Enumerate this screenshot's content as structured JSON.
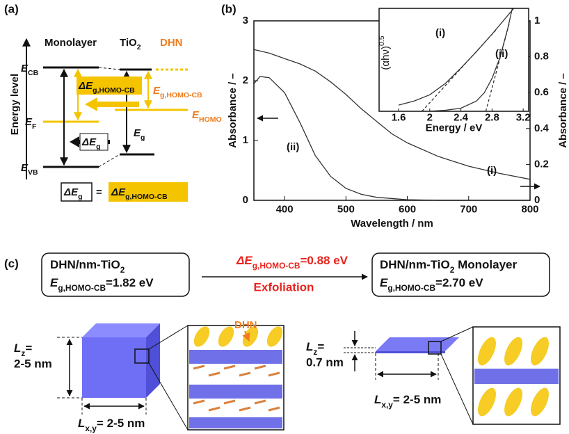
{
  "panel_a": {
    "label": "(a)",
    "columns": [
      "Monolayer",
      [
        "TiO",
        "2"
      ],
      "DHN"
    ],
    "y_axis_label": "Energy level",
    "E_CB": [
      "E",
      "CB"
    ],
    "E_F": [
      "E",
      "F"
    ],
    "E_VB": [
      "E",
      "VB"
    ],
    "E_HOMO": [
      "E",
      "HOMO"
    ],
    "E_g": [
      "E",
      "g"
    ],
    "E_g_homo_cb": [
      "E",
      "g,HOMO-CB"
    ],
    "delta_E_g_homo_cb": [
      "ΔE",
      "g,HOMO-CB"
    ],
    "delta_E_g": [
      "ΔE",
      "g"
    ],
    "equation": {
      "left": [
        "ΔE",
        "g"
      ],
      "sign": "=",
      "right": [
        "ΔE",
        "g,HOMO-CB"
      ]
    }
  },
  "chart_data": [
    {
      "type": "line",
      "panel_label": "(b)",
      "x_label": "Wavelength / nm",
      "y_label": "Absorbance / –",
      "y2_label": "Absorbance / –",
      "xlim": [
        350,
        800
      ],
      "xticks": [
        400,
        500,
        600,
        700,
        800
      ],
      "ylim": [
        0,
        3
      ],
      "yticks": [
        0,
        1,
        2,
        3
      ],
      "y2lim": [
        0,
        1
      ],
      "y2ticks": [
        0,
        0.2,
        0.4,
        0.6,
        0.8,
        1
      ],
      "series": [
        {
          "name": "(i)",
          "color": "#333333",
          "axis": "y2",
          "x": [
            350,
            375,
            400,
            425,
            450,
            475,
            500,
            525,
            550,
            575,
            600,
            650,
            700,
            750,
            800
          ],
          "values": [
            0.84,
            0.82,
            0.79,
            0.76,
            0.72,
            0.66,
            0.59,
            0.51,
            0.44,
            0.37,
            0.32,
            0.245,
            0.19,
            0.15,
            0.117
          ]
        },
        {
          "name": "(ii)",
          "color": "#333333",
          "x": [
            350,
            360,
            375,
            400,
            425,
            450,
            475,
            500,
            525,
            550,
            600,
            650,
            700,
            800
          ],
          "values": [
            1.95,
            2.07,
            2.05,
            1.8,
            1.3,
            0.75,
            0.4,
            0.2,
            0.1,
            0.05,
            0.01,
            0,
            0,
            0
          ]
        }
      ]
    },
    {
      "type": "line",
      "x_label": "Energy / eV",
      "y_label": [
        "(αhν)",
        "0.5"
      ],
      "xlim": [
        1.35,
        3.27
      ],
      "xticks": [
        1.6,
        2,
        2.4,
        2.8,
        3.2
      ],
      "ylim": [
        0,
        1
      ],
      "series": [
        {
          "name": "(i)",
          "color": "#333333",
          "x": [
            1.6,
            1.8,
            2.0,
            2.2,
            2.4,
            2.6,
            2.8,
            3.0,
            3.08
          ],
          "values": [
            0.06,
            0.1,
            0.16,
            0.27,
            0.42,
            0.58,
            0.75,
            0.93,
            1.0
          ]
        },
        {
          "color": "#333333",
          "dashed": true,
          "x": [
            1.9,
            2.85
          ],
          "values": [
            0,
            0.79
          ]
        },
        {
          "name": "(ii)",
          "color": "#333333",
          "x": [
            2.0,
            2.2,
            2.4,
            2.6,
            2.7,
            2.8,
            2.9,
            3.0,
            3.06
          ],
          "values": [
            0.0,
            0.01,
            0.03,
            0.1,
            0.18,
            0.32,
            0.52,
            0.8,
            1.0
          ]
        },
        {
          "color": "#333333",
          "dashed": true,
          "x": [
            2.72,
            3.02
          ],
          "values": [
            0,
            0.85
          ]
        }
      ]
    }
  ],
  "panel_c": {
    "label": "(c)",
    "before": {
      "name": [
        "DHN/nm-TiO",
        "2"
      ],
      "gap": [
        "E",
        "g,HOMO-CB",
        "=1.82 eV"
      ]
    },
    "after": {
      "name": [
        "DHN/nm-TiO",
        "2",
        " Monolayer"
      ],
      "gap": [
        "E",
        "g,HOMO-CB",
        "=2.70 eV"
      ]
    },
    "change": [
      "ΔE",
      "g,HOMO-CB",
      "=0.88 eV"
    ],
    "process": "Exfoliation",
    "molecule": "DHN",
    "bulk": {
      "lz": [
        "L",
        "z",
        "="
      ],
      "lz_value": "2-5 nm",
      "lxy": [
        "L",
        "x,y",
        "= 2-5 nm"
      ]
    },
    "monolayer": {
      "lz": [
        "L",
        "z",
        "="
      ],
      "lz_value": "0.7 nm",
      "lxy": [
        "L",
        "x,y",
        "= 2-5 nm"
      ]
    }
  }
}
